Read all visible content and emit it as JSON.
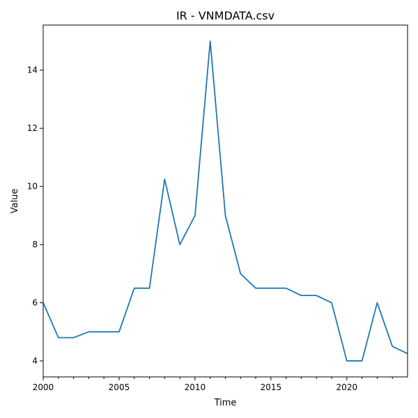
{
  "chart_data": {
    "type": "line",
    "title": "IR - VNMDATA.csv",
    "xlabel": "Time",
    "ylabel": "Value",
    "xlim": [
      2000,
      2024
    ],
    "ylim": [
      3.45,
      15.55
    ],
    "x_ticks": [
      2000,
      2005,
      2010,
      2015,
      2020
    ],
    "x_minor_ticks": [
      2001,
      2002,
      2003,
      2004,
      2006,
      2007,
      2008,
      2009,
      2011,
      2012,
      2013,
      2014,
      2016,
      2017,
      2018,
      2019,
      2021,
      2022,
      2023
    ],
    "y_ticks": [
      4,
      6,
      8,
      10,
      12,
      14
    ],
    "grid": false,
    "line_color": "#1f77b4",
    "series": [
      {
        "x": [
          2000,
          2001,
          2002,
          2003,
          2004,
          2005,
          2006,
          2007,
          2008,
          2009,
          2010,
          2011,
          2012,
          2013,
          2014,
          2015,
          2016,
          2017,
          2018,
          2019,
          2020,
          2021,
          2022,
          2023,
          2024
        ],
        "values": [
          6.0,
          4.8,
          4.8,
          5.0,
          5.0,
          5.0,
          6.5,
          6.5,
          10.25,
          8.0,
          9.0,
          15.0,
          9.0,
          7.0,
          6.5,
          6.5,
          6.5,
          6.25,
          6.25,
          6.0,
          4.0,
          4.0,
          6.0,
          4.5,
          4.25
        ]
      }
    ]
  }
}
